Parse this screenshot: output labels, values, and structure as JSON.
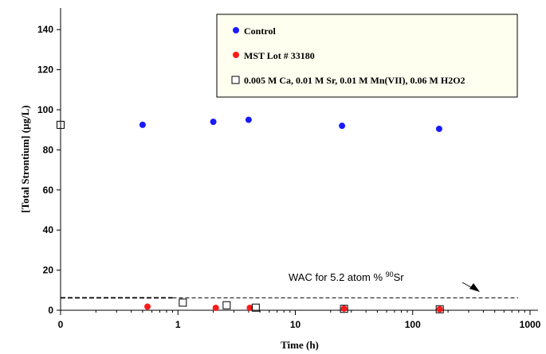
{
  "chart_data": {
    "type": "scatter",
    "title": "",
    "xlabel": "Time (h)",
    "ylabel": "[Total Strontium]  (µg/L)",
    "x_scale": "log",
    "x_ticks": [
      {
        "label": "0",
        "value": 0.1
      },
      {
        "label": "1",
        "value": 1
      },
      {
        "label": "10",
        "value": 10
      },
      {
        "label": "100",
        "value": 100
      },
      {
        "label": "1000",
        "value": 1000
      }
    ],
    "ylim": [
      0,
      150
    ],
    "y_ticks": [
      0,
      20,
      40,
      60,
      80,
      100,
      120,
      140
    ],
    "grid": false,
    "legend_position": "top-right",
    "series": [
      {
        "name": "Control",
        "marker": "circle",
        "color": "#1a1aff",
        "x": [
          0.5,
          2,
          4,
          25,
          168
        ],
        "y": [
          92.5,
          94,
          95,
          92,
          90.5
        ]
      },
      {
        "name": "MST Lot # 33180",
        "marker": "circle",
        "color": "#ff1a1a",
        "x": [
          0.55,
          2.1,
          4.1,
          26,
          170
        ],
        "y": [
          1.8,
          1.2,
          1.2,
          0.8,
          0.5
        ]
      },
      {
        "name": "0.005 M Ca, 0.01 M Sr, 0.01 M Mn(VII), 0.06 M H2O2",
        "marker": "square-open",
        "color": "#000000",
        "x": [
          0.1,
          1.1,
          2.6,
          4.6,
          26,
          170
        ],
        "y": [
          92.5,
          3.8,
          2.5,
          1.3,
          0.7,
          0.5
        ]
      }
    ],
    "wac_line": {
      "y": 6.2,
      "label_prefix": "WAC for 5.2 atom % ",
      "label_sup": "90",
      "label_suffix": "Sr"
    }
  }
}
